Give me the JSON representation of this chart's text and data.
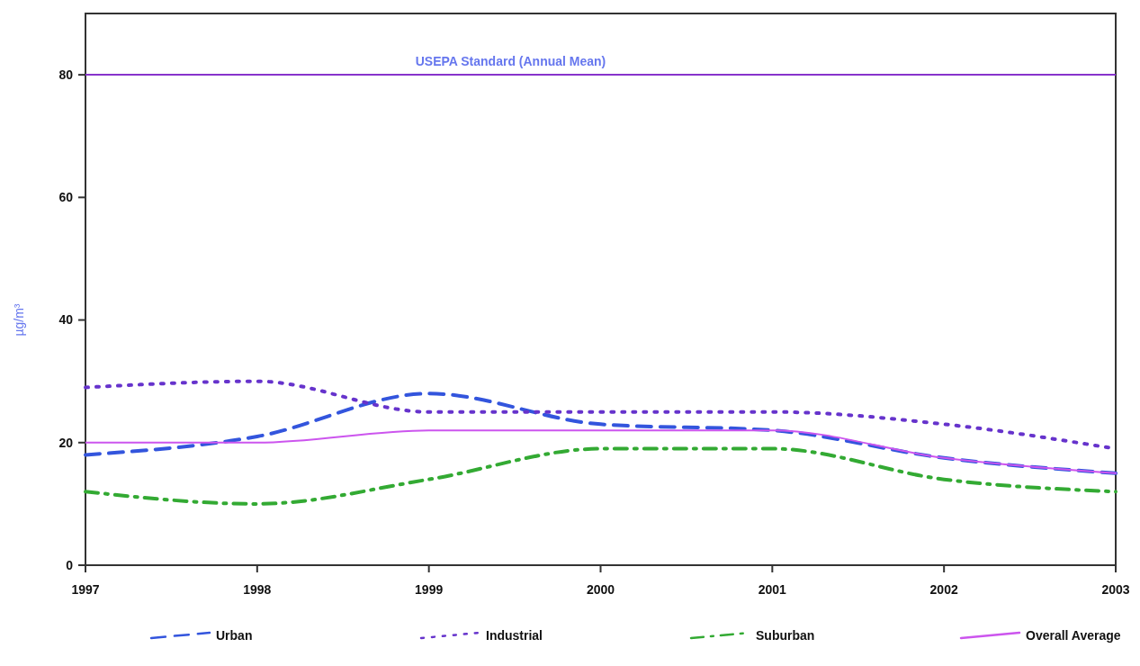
{
  "chart_data": {
    "type": "line",
    "ylabel": "µg/m³",
    "x": [
      1997,
      1998,
      1999,
      2000,
      2001,
      2002,
      2003
    ],
    "xlim": [
      1997,
      2003
    ],
    "xticks": [
      1997,
      1998,
      1999,
      2000,
      2001,
      2002,
      2003
    ],
    "ylim": [
      0,
      90
    ],
    "yticks": [
      0,
      20,
      40,
      60,
      80
    ],
    "grid": false,
    "legend": "bottom",
    "marker": "none",
    "series": [
      {
        "name": "Urban",
        "color": "#3355dd",
        "line_style": "dashed",
        "values": [
          18,
          21,
          28,
          23,
          22,
          17.5,
          15
        ]
      },
      {
        "name": "Industrial",
        "color": "#6633cc",
        "line_style": "dotted",
        "values": [
          29,
          30,
          25,
          25,
          25,
          23,
          19
        ]
      },
      {
        "name": "Suburban",
        "color": "#33aa33",
        "line_style": "dashdot",
        "values": [
          12,
          10,
          14,
          19,
          19,
          14,
          12
        ]
      },
      {
        "name": "Overall Average",
        "color": "#cc55ee",
        "line_style": "solid",
        "values": [
          20,
          20,
          22,
          22,
          22,
          17.5,
          15
        ]
      }
    ],
    "ref_lines": [
      {
        "axis": "y",
        "value": 80,
        "label": "USEPA Standard (Annual Mean)",
        "color": "#8833cc"
      }
    ]
  }
}
